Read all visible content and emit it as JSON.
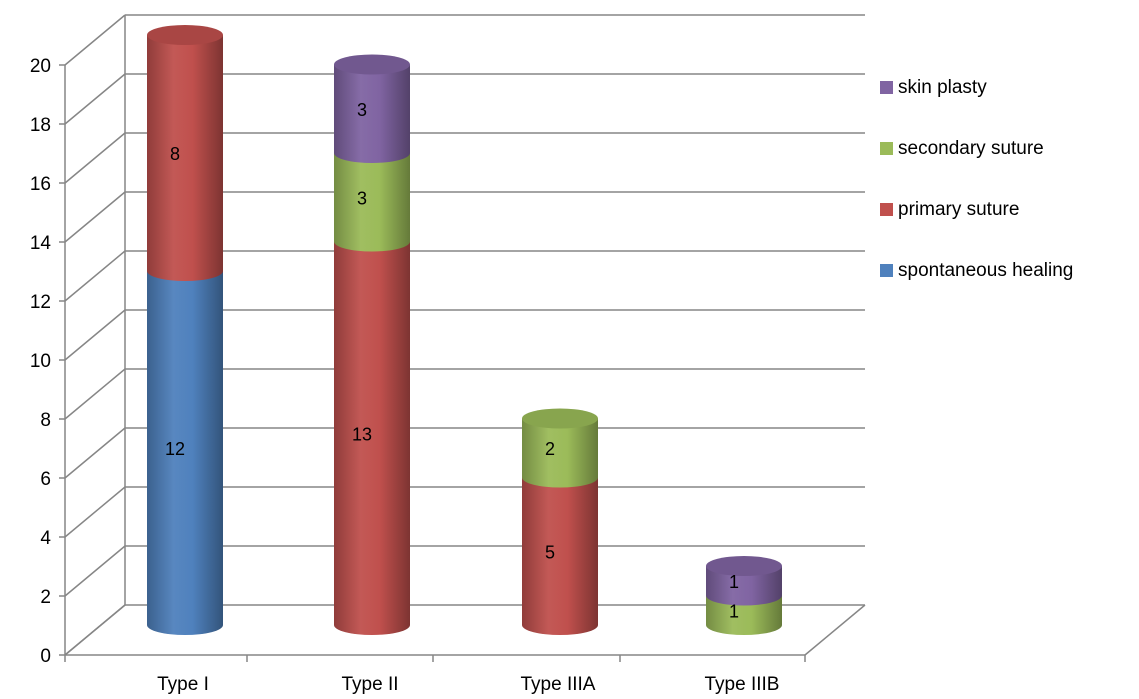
{
  "chart_data": {
    "type": "bar",
    "stacked": true,
    "style": "3d-cylinder",
    "title": "",
    "xlabel": "",
    "ylabel": "",
    "categories": [
      "Type I",
      "Type II",
      "Type IIIA",
      "Type IIIB"
    ],
    "ylim": [
      0,
      20
    ],
    "yticks": [
      0,
      2,
      4,
      6,
      8,
      10,
      12,
      14,
      16,
      18,
      20
    ],
    "grid": true,
    "legend_position": "right",
    "series": [
      {
        "name": "spontaneous healing",
        "color": "#4F81BD",
        "values": [
          12,
          null,
          null,
          null
        ]
      },
      {
        "name": "primary suture",
        "color": "#C0504D",
        "values": [
          8,
          13,
          5,
          null
        ]
      },
      {
        "name": "secondary suture",
        "color": "#9BBB59",
        "values": [
          null,
          3,
          2,
          1
        ]
      },
      {
        "name": "skin plasty",
        "color": "#8064A2",
        "values": [
          null,
          3,
          null,
          1
        ]
      }
    ]
  }
}
